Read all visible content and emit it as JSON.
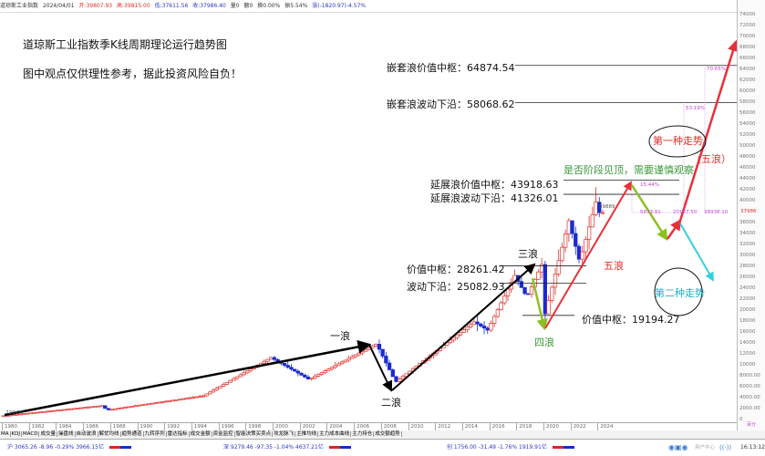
{
  "header": {
    "name": "道琼斯工业指数",
    "date": "2024/04/01",
    "open": "开:39807.93",
    "high": "高:39815.00",
    "low": "低:37611.56",
    "close": "收:37986.40",
    "vol": "量0",
    "amount": "额0",
    "turnover": "换0.00%",
    "amplitude": "振5.54%",
    "change": "涨(-1820.97)-4.57%"
  },
  "annotations": {
    "title": "道琼斯工业指数季K线周期理论运行趋势图",
    "disclaimer": "图中观点仅供理性参考，据此投资风险自负！",
    "nested_value_center": "嵌套浪价值中枢：64874.54",
    "nested_lower_edge": "嵌套浪波动下沿：58068.62",
    "ext_value_center": "延展浪价值中枢：43918.63",
    "ext_lower_edge": "延展浪波动下沿：41326.01",
    "value_center_1": "价值中枢：28261.42",
    "lower_edge_1": "波动下沿：25082.93",
    "value_center_2": "价值中枢：19194.27",
    "caution": "是否阶段见顶，需要谨慎观察",
    "scenario_1": "第一种走势",
    "scenario_2": "第二种走势",
    "wave_1": "一浪",
    "wave_2": "二浪",
    "wave_3": "三浪",
    "wave_4": "四浪",
    "wave_5": "五浪",
    "wave_5_future": "（五浪）",
    "last_price_tag": "39889.",
    "start_price_tag": "720.00",
    "pct_1": "15.44%",
    "pct_2": "53.19%",
    "pct_3": "70.65%",
    "val_a": "5873.91",
    "val_b": "20167.50",
    "val_c": "38938.10",
    "current_price": "37986"
  },
  "chart_data": {
    "type": "candlestick",
    "title": "道琼斯工业指数季K线周期理论运行趋势图",
    "period": "quarterly",
    "ylim": [
      0,
      76000
    ],
    "y_ticks": [
      "74000",
      "72000",
      "70000",
      "68000",
      "66000",
      "64000",
      "62000",
      "60000",
      "58000",
      "56000",
      "54000",
      "52000",
      "50000",
      "48000",
      "46000",
      "44000",
      "42000",
      "40000",
      "36000",
      "34000",
      "32000",
      "30000",
      "28000",
      "26000",
      "24000",
      "22000",
      "20000",
      "18000",
      "16000",
      "14000",
      "12000",
      "10000",
      "8000.00",
      "6000.00",
      "4000.00",
      "2000.00",
      "0"
    ],
    "y_unit_label": "百分",
    "x_ticks": [
      "1980",
      "1982",
      "1984",
      "1986",
      "1988",
      "1990",
      "1992",
      "1994",
      "1996",
      "1998",
      "2000",
      "2002",
      "2004",
      "2006",
      "2008",
      "2010",
      "2012",
      "2014",
      "2016",
      "2018",
      "2020",
      "2022",
      "2024"
    ],
    "price_path": [
      [
        1980,
        800
      ],
      [
        1987.5,
        2700
      ],
      [
        1987.9,
        1900
      ],
      [
        1990,
        2700
      ],
      [
        1995,
        4500
      ],
      [
        2000,
        11500
      ],
      [
        2002.8,
        7500
      ],
      [
        2007.8,
        14000
      ],
      [
        2009.2,
        7000
      ],
      [
        2015,
        18000
      ],
      [
        2016,
        16500
      ],
      [
        2018,
        26500
      ],
      [
        2018.9,
        22500
      ],
      [
        2020,
        28500
      ],
      [
        2020.2,
        19000
      ],
      [
        2022,
        36500
      ],
      [
        2022.8,
        29000
      ],
      [
        2024,
        39889
      ],
      [
        2024.25,
        37986
      ]
    ],
    "levels": [
      64874.54,
      58068.62,
      43918.63,
      41326.01,
      28261.42,
      25082.93,
      19194.27
    ],
    "colors": {
      "up": "#e0302a",
      "down": "#1a2ad0",
      "wave": "#000000",
      "wave4": "#8cc020",
      "wave5": "#e8303a",
      "scenario2": "#30d0e0",
      "annot": "#c040d0"
    }
  },
  "indicator_tabs": [
    "MA",
    "KDJ",
    "MACD",
    "成交量",
    "操盘线",
    "自动波浪",
    "解忧均线",
    "趋势通道",
    "九转序列",
    "雷达指标",
    "成交金额",
    "资金监控",
    "智能决策买卖点",
    "攻龙脉飞",
    "主推均线",
    "主力成本曲线",
    "主力持仓",
    "成交额趋势"
  ],
  "status": {
    "sh": "沪 3065.26 -8.96 -0.29% 3966.15亿",
    "sz": "深 9279.46 -97.35 -1.04% 4637.21亿",
    "cy": "创 1756.00 -31.49 -1.76% 1919.91亿",
    "user_center": "用户中心",
    "time": "16:13:12"
  }
}
